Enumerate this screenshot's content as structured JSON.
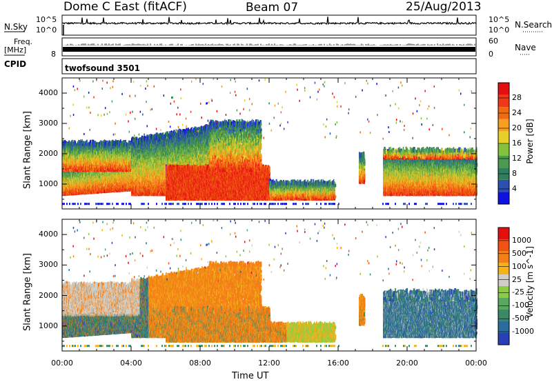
{
  "header": {
    "station": "Dome C East (fitACF)",
    "beam": "Beam 07",
    "date": "25/Aug/2013"
  },
  "summary": {
    "nsky_label": "N.Sky",
    "nsky_top": "10^5",
    "nsky_bottom": "10^0",
    "nsearch_label": "N.Search",
    "nsearch_top": "10^5",
    "nsearch_bottom": "10^0",
    "freq_label_1": "Freq.",
    "freq_label_2": "[MHz]",
    "freq_top": "",
    "freq_bottom": "8",
    "nave_label": "Nave",
    "nave_top": "60",
    "nave_bottom": "0",
    "cpid_label": "CPID",
    "cpid_value": "twofsound 3501"
  },
  "chart_data": {
    "type": "heatmap",
    "x_label": "Time UT",
    "x_ticks": [
      "00:00",
      "04:00",
      "08:00",
      "12:00",
      "16:00",
      "20:00",
      "00:00"
    ],
    "x_range_hours": [
      0,
      24
    ],
    "y_label": "Slant Range [km]",
    "y_ticks": [
      1000,
      2000,
      3000,
      4000
    ],
    "y_range_km": [
      180,
      4500
    ],
    "panels": [
      {
        "name": "power",
        "colorbar_label": "Power [dB]",
        "colorbar_ticks": [
          "28",
          "24",
          "20",
          "16",
          "12",
          "8",
          "4"
        ],
        "colors": [
          "#1010e0",
          "#2c4fb0",
          "#2f7f5f",
          "#4a9a50",
          "#84c23a",
          "#e8d02a",
          "#f7a020",
          "#f26a10",
          "#ee3818",
          "#e40d10"
        ]
      },
      {
        "name": "velocity",
        "colorbar_label": "Velocity [m s^-1]",
        "colorbar_ticks": [
          "1000",
          "500",
          "100",
          "25",
          "-25",
          "-100",
          "-500",
          "-1000"
        ],
        "colors": [
          "#2a3fb5",
          "#2b6ba0",
          "#3a8a6a",
          "#5aa860",
          "#8acd44",
          "#cfcfc8",
          "#f6b21a",
          "#f27f18",
          "#f05216",
          "#e41010"
        ]
      }
    ]
  }
}
